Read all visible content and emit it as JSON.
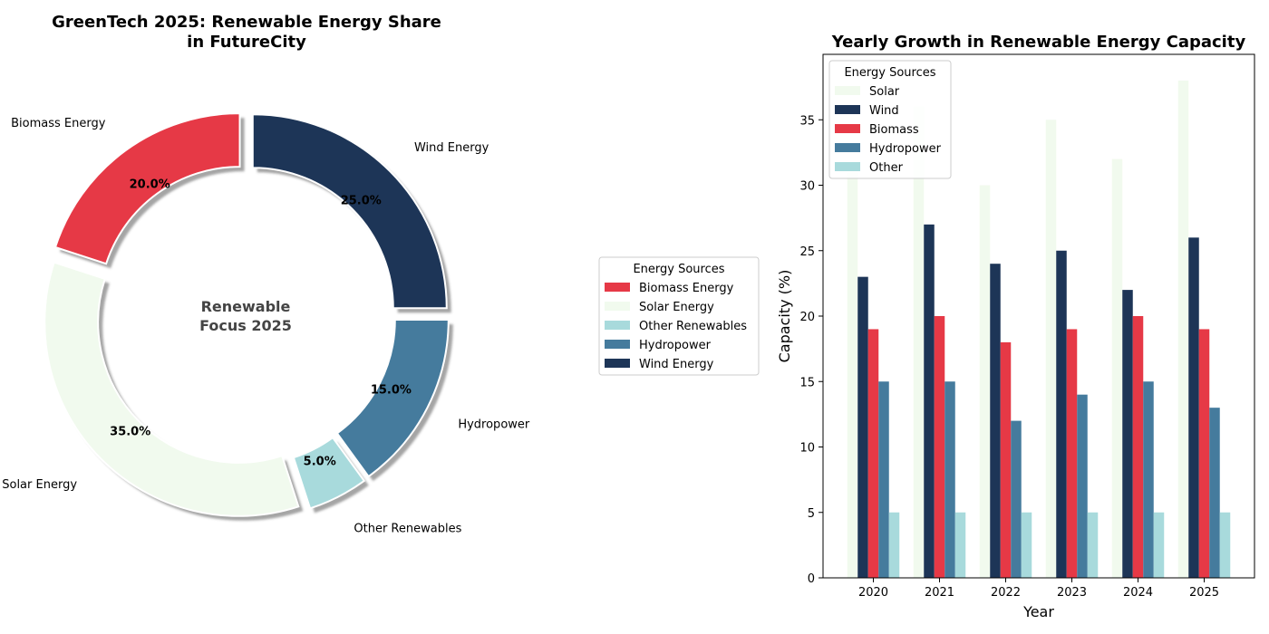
{
  "chart_data": [
    {
      "type": "pie",
      "variant": "donut",
      "title_line1": "GreenTech 2025: Renewable Energy Share",
      "title_line2": "in FutureCity",
      "center_text_line1": "Renewable",
      "center_text_line2": "Focus 2025",
      "slices": [
        {
          "label": "Biomass Energy",
          "value": 20.0,
          "pct_text": "20.0%",
          "color": "#e63946",
          "explode": true
        },
        {
          "label": "Solar Energy",
          "value": 35.0,
          "pct_text": "35.0%",
          "color": "#f1faee",
          "explode": true
        },
        {
          "label": "Other Renewables",
          "value": 5.0,
          "pct_text": "5.0%",
          "color": "#a8dadc",
          "explode": true
        },
        {
          "label": "Hydropower",
          "value": 15.0,
          "pct_text": "15.0%",
          "color": "#457b9d",
          "explode": true
        },
        {
          "label": "Wind Energy",
          "value": 25.0,
          "pct_text": "25.0%",
          "color": "#1d3557",
          "explode": true
        }
      ],
      "legend": {
        "title": "Energy Sources",
        "placement": "right",
        "entries": [
          "Biomass Energy",
          "Solar Energy",
          "Other Renewables",
          "Hydropower",
          "Wind Energy"
        ]
      },
      "shadow": true
    },
    {
      "type": "bar",
      "title": "Yearly Growth in Renewable Energy Capacity",
      "xlabel": "Year",
      "ylabel": "Capacity (%)",
      "categories": [
        "2020",
        "2021",
        "2022",
        "2023",
        "2024",
        "2025"
      ],
      "series": [
        {
          "name": "Solar",
          "color": "#f1faee",
          "values": [
            31,
            36,
            30,
            35,
            32,
            38
          ]
        },
        {
          "name": "Wind",
          "color": "#1d3557",
          "values": [
            23,
            27,
            24,
            25,
            22,
            26
          ]
        },
        {
          "name": "Biomass",
          "color": "#e63946",
          "values": [
            19,
            20,
            18,
            19,
            20,
            19
          ]
        },
        {
          "name": "Hydropower",
          "color": "#457b9d",
          "values": [
            15,
            15,
            12,
            14,
            15,
            13
          ]
        },
        {
          "name": "Other",
          "color": "#a8dadc",
          "values": [
            5,
            5,
            5,
            5,
            5,
            5
          ]
        }
      ],
      "ylim": [
        0,
        40
      ],
      "yticks": [
        "0",
        "5",
        "10",
        "15",
        "20",
        "25",
        "30",
        "35"
      ],
      "legend": {
        "title": "Energy Sources",
        "placement": "top-left",
        "entries": [
          "Solar",
          "Wind",
          "Biomass",
          "Hydropower",
          "Other"
        ]
      },
      "grid": false
    }
  ]
}
